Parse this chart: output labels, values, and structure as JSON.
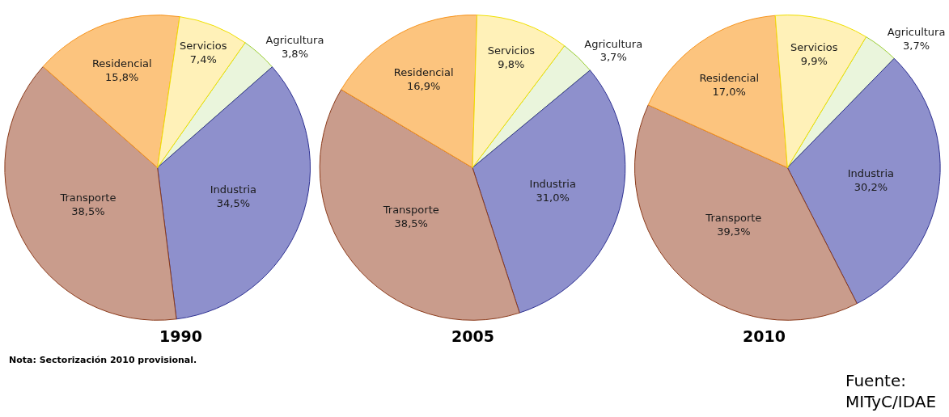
{
  "chart_data": [
    {
      "type": "pie",
      "title": "1990",
      "categories": [
        "Agricultura",
        "Industria",
        "Transporte",
        "Residencial",
        "Servicios"
      ],
      "values": [
        3.8,
        34.5,
        38.5,
        15.8,
        7.4
      ],
      "value_labels": [
        "3,8%",
        "34,5%",
        "38,5%",
        "15,8%",
        "7,4%"
      ],
      "colors": [
        "#eaf5dc",
        "#8e90cc",
        "#c99c8c",
        "#fcc47e",
        "#fff1b8"
      ],
      "annotations": [
        "Nota: Sectorización 2010 provisional."
      ]
    },
    {
      "type": "pie",
      "title": "2005",
      "categories": [
        "Agricultura",
        "Industria",
        "Transporte",
        "Residencial",
        "Servicios"
      ],
      "values": [
        3.7,
        31.0,
        38.5,
        16.9,
        9.8
      ],
      "value_labels": [
        "3,7%",
        "31,0%",
        "38,5%",
        "16,9%",
        "9,8%"
      ],
      "colors": [
        "#eaf5dc",
        "#8e90cc",
        "#c99c8c",
        "#fcc47e",
        "#fff1b8"
      ]
    },
    {
      "type": "pie",
      "title": "2010",
      "categories": [
        "Agricultura",
        "Industria",
        "Transporte",
        "Residencial",
        "Servicios"
      ],
      "values": [
        3.7,
        30.2,
        39.3,
        17.0,
        9.9
      ],
      "value_labels": [
        "3,7%",
        "30,2%",
        "39,3%",
        "17,0%",
        "9,9%"
      ],
      "colors": [
        "#eaf5dc",
        "#8e90cc",
        "#c99c8c",
        "#fcc47e",
        "#fff1b8"
      ],
      "annotations": [
        "Fuente:\nMITyC/IDAE"
      ]
    }
  ]
}
